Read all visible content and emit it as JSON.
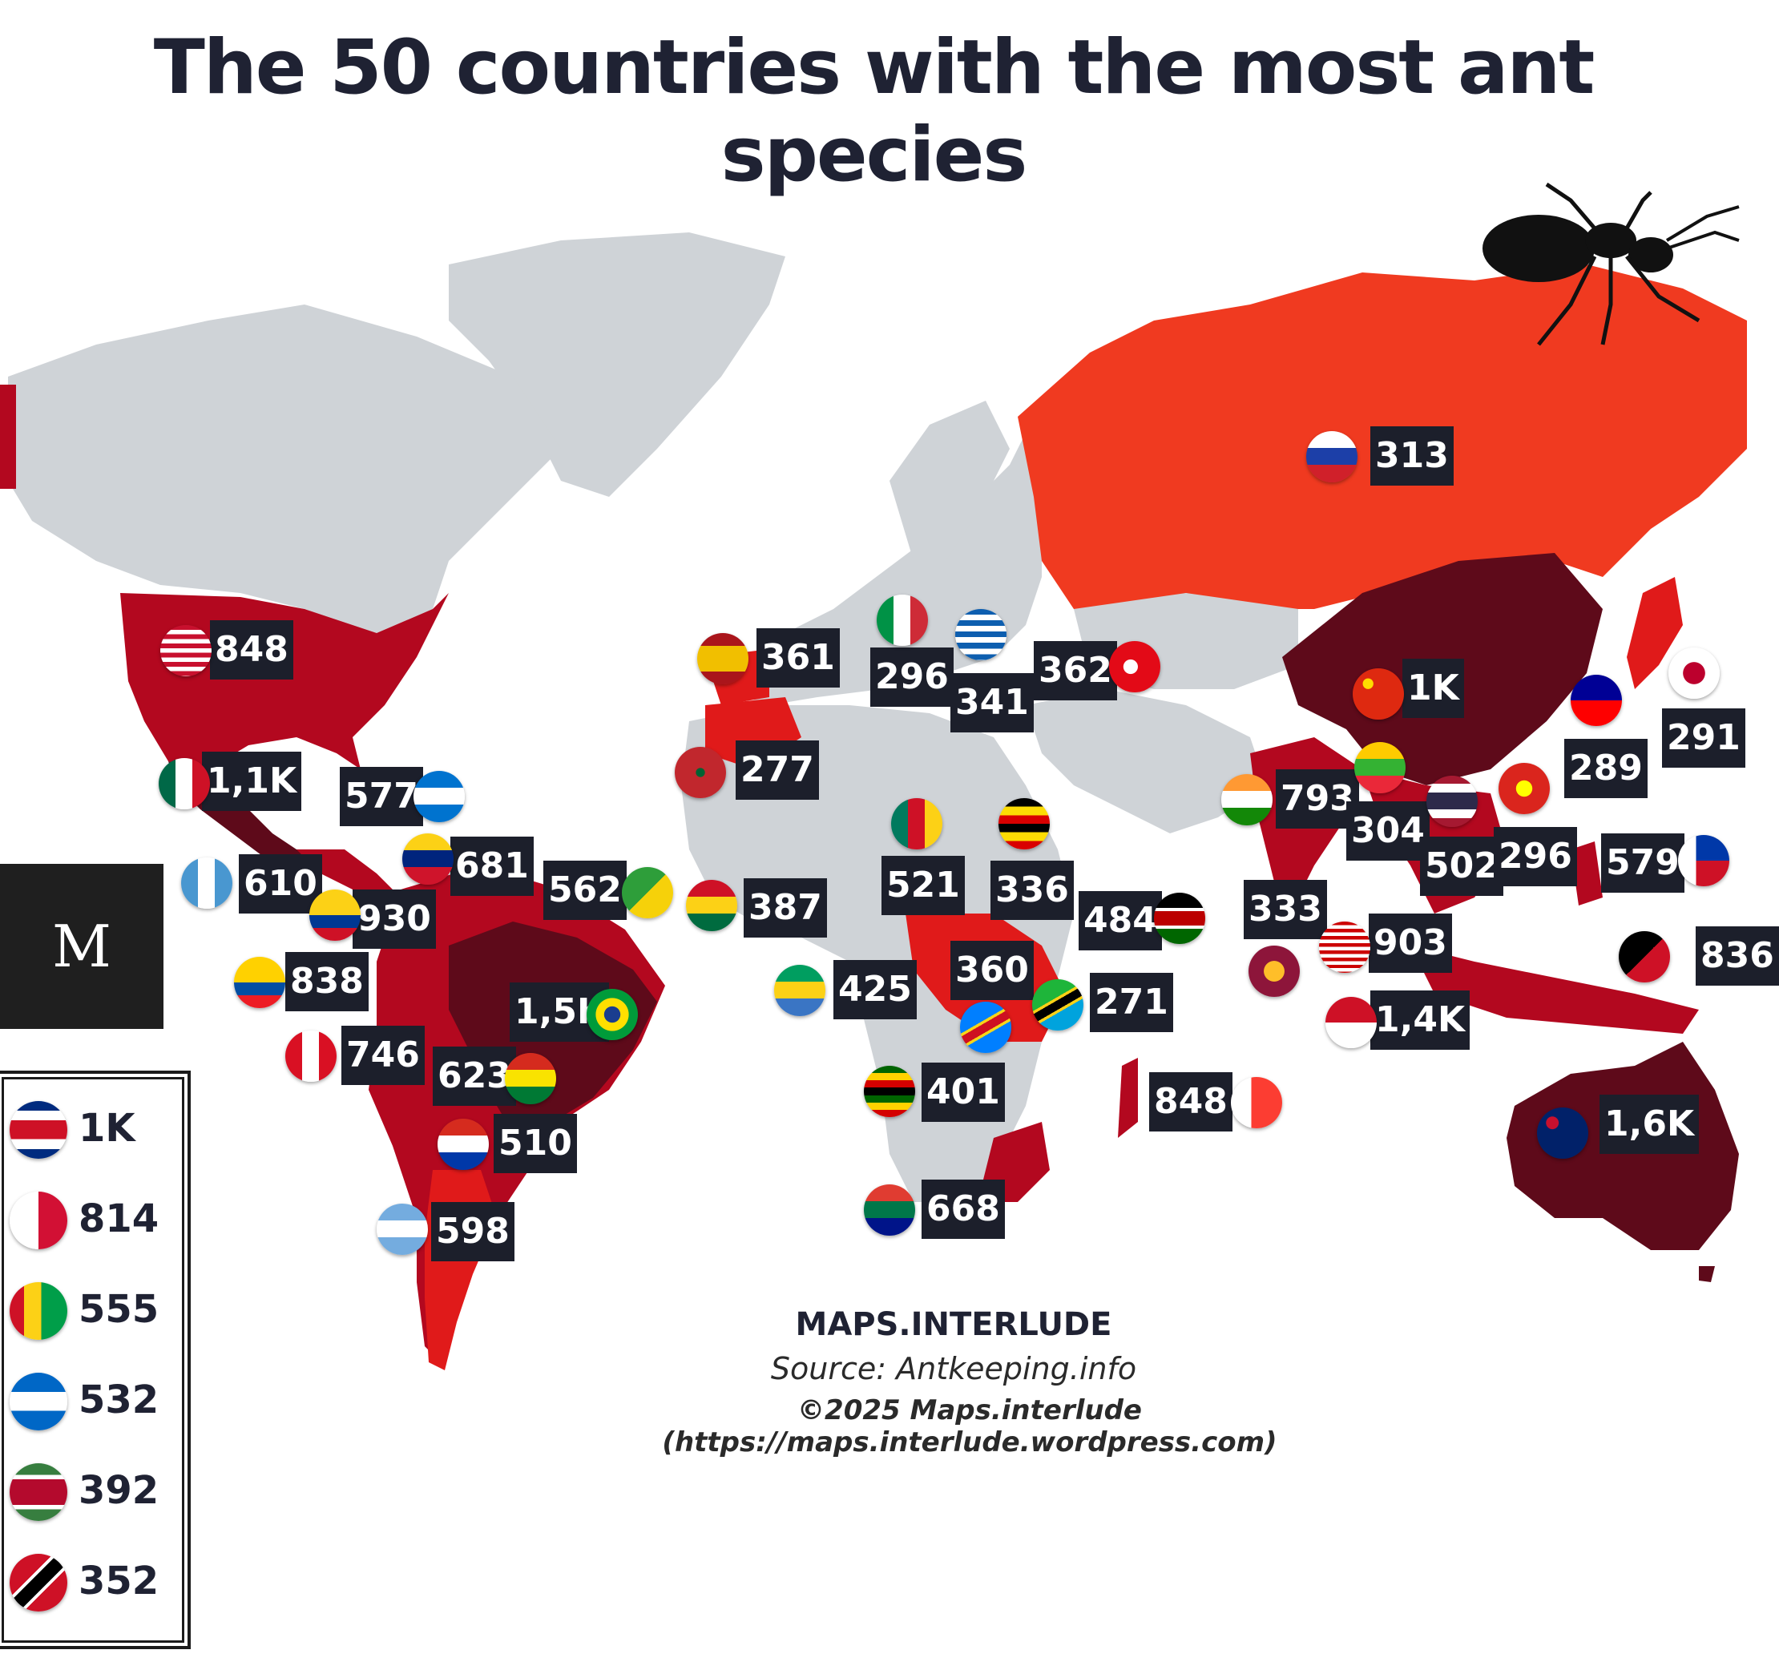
{
  "title": "The 50 countries with the most ant species",
  "colors": {
    "land": "#cfd3d7",
    "tier_high": "#5e0a1a",
    "tier_mid": "#b3081f",
    "tier_low_mid": "#e01a1a",
    "tier_low": "#f03a20",
    "label_bg": "#1c1f2b",
    "label_text": "#ffffff"
  },
  "logo": {
    "letter": "M"
  },
  "map_labels": [
    {
      "country": "Russia",
      "value": "313",
      "flag": "russia-flag"
    },
    {
      "country": "United States",
      "value": "848",
      "flag": "usa-flag"
    },
    {
      "country": "Mexico",
      "value": "1,1K",
      "flag": "mexico-flag"
    },
    {
      "country": "Honduras",
      "value": "577",
      "flag": "honduras-flag"
    },
    {
      "country": "Guatemala",
      "value": "610",
      "flag": "guatemala-flag"
    },
    {
      "country": "Venezuela",
      "value": "681",
      "flag": "venezuela-flag"
    },
    {
      "country": "Colombia",
      "value": "930",
      "flag": "colombia-flag"
    },
    {
      "country": "French Guiana",
      "value": "562",
      "flag": "french-guiana-flag"
    },
    {
      "country": "Ecuador",
      "value": "838",
      "flag": "ecuador-flag"
    },
    {
      "country": "Brazil",
      "value": "1,5K",
      "flag": "brazil-flag"
    },
    {
      "country": "Peru",
      "value": "746",
      "flag": "peru-flag"
    },
    {
      "country": "Bolivia",
      "value": "623",
      "flag": "bolivia-flag"
    },
    {
      "country": "Paraguay",
      "value": "510",
      "flag": "paraguay-flag"
    },
    {
      "country": "Argentina",
      "value": "598",
      "flag": "argentina-flag"
    },
    {
      "country": "Spain",
      "value": "361",
      "flag": "spain-flag"
    },
    {
      "country": "Italy",
      "value": "296",
      "flag": "italy-flag"
    },
    {
      "country": "Greece",
      "value": "341",
      "flag": "greece-flag"
    },
    {
      "country": "Turkey",
      "value": "362",
      "flag": "turkey-flag"
    },
    {
      "country": "Morocco",
      "value": "277",
      "flag": "morocco-flag"
    },
    {
      "country": "Ghana",
      "value": "387",
      "flag": "ghana-flag"
    },
    {
      "country": "Cameroon",
      "value": "521",
      "flag": "cameroon-flag"
    },
    {
      "country": "Uganda",
      "value": "336",
      "flag": "uganda-flag"
    },
    {
      "country": "Kenya",
      "value": "484",
      "flag": "kenya-flag"
    },
    {
      "country": "Gabon",
      "value": "425",
      "flag": "gabon-flag"
    },
    {
      "country": "DR Congo",
      "value": "360",
      "flag": "drc-flag"
    },
    {
      "country": "Tanzania",
      "value": "271",
      "flag": "tanzania-flag"
    },
    {
      "country": "Zimbabwe",
      "value": "401",
      "flag": "zimbabwe-flag"
    },
    {
      "country": "Madagascar",
      "value": "848",
      "flag": "madagascar-flag"
    },
    {
      "country": "South Africa",
      "value": "668",
      "flag": "south-africa-flag"
    },
    {
      "country": "China",
      "value": "1K",
      "flag": "china-flag"
    },
    {
      "country": "Taiwan",
      "value": "289",
      "flag": "taiwan-flag"
    },
    {
      "country": "Japan",
      "value": "291",
      "flag": "japan-flag"
    },
    {
      "country": "India",
      "value": "793",
      "flag": "india-flag"
    },
    {
      "country": "Myanmar",
      "value": "304",
      "flag": "myanmar-flag"
    },
    {
      "country": "Thailand",
      "value": "502",
      "flag": "thailand-flag"
    },
    {
      "country": "Vietnam",
      "value": "296",
      "flag": "vietnam-flag"
    },
    {
      "country": "Philippines",
      "value": "579",
      "flag": "philippines-flag"
    },
    {
      "country": "Sri Lanka",
      "value": "333",
      "flag": "sri-lanka-flag"
    },
    {
      "country": "Malaysia",
      "value": "903",
      "flag": "malaysia-flag"
    },
    {
      "country": "Indonesia",
      "value": "1,4K",
      "flag": "indonesia-flag"
    },
    {
      "country": "Papua New Guinea",
      "value": "836",
      "flag": "png-flag"
    },
    {
      "country": "Australia",
      "value": "1,6K",
      "flag": "australia-flag"
    }
  ],
  "legend": [
    {
      "country": "Costa Rica",
      "value": "1K",
      "flag": "costa-rica-flag"
    },
    {
      "country": "Panama",
      "value": "814",
      "flag": "panama-flag"
    },
    {
      "country": "Guyana",
      "value": "555",
      "flag": "guyana-flag"
    },
    {
      "country": "Nicaragua",
      "value": "532",
      "flag": "nicaragua-flag"
    },
    {
      "country": "Suriname",
      "value": "392",
      "flag": "suriname-flag"
    },
    {
      "country": "Trinidad and Tobago",
      "value": "352",
      "flag": "trinidad-flag"
    }
  ],
  "credits": {
    "brand": "MAPS.INTERLUDE",
    "source": "Source: Antkeeping.info",
    "copyright": "©2025 Maps.interlude (https://maps.interlude.wordpress.com)"
  }
}
